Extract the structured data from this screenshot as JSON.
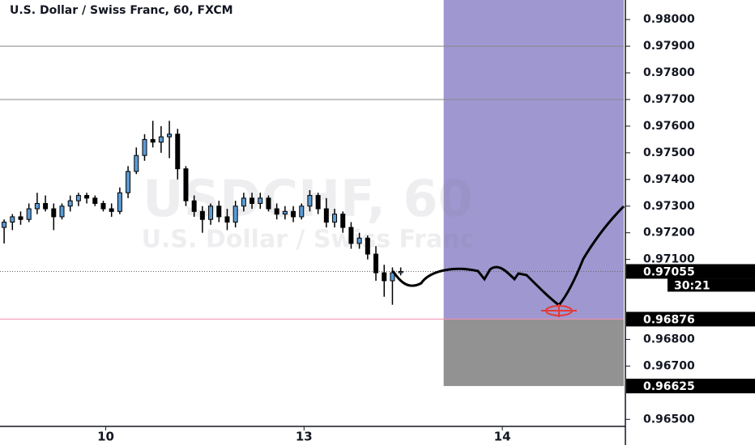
{
  "chart_data": {
    "type": "candlestick",
    "title": "U.S. Dollar / Swiss Franc, 60, FXCM",
    "watermark": [
      "USDCHF, 60",
      "U.S. Dollar / Swiss Franc"
    ],
    "open": [
      0.9722,
      0.9724,
      0.9726,
      0.9725,
      0.9729,
      0.9731,
      0.9729,
      0.9726,
      0.973,
      0.9732,
      0.9734,
      0.9733,
      0.9731,
      0.9729,
      0.9728,
      0.9735,
      0.9743,
      0.9749,
      0.9755,
      0.9754,
      0.9756,
      0.9757,
      0.9744,
      0.9732,
      0.9728,
      0.9725,
      0.973,
      0.9726,
      0.9724,
      0.973,
      0.9733,
      0.9731,
      0.9733,
      0.9729,
      0.9727,
      0.9728,
      0.9726,
      0.973,
      0.9734,
      0.9729,
      0.9724,
      0.9727,
      0.9722,
      0.9716,
      0.9718,
      0.9712,
      0.9705,
      0.9702,
      0.9705
    ],
    "high": [
      0.9725,
      0.9727,
      0.9728,
      0.9731,
      0.9735,
      0.9734,
      0.9731,
      0.9731,
      0.9734,
      0.9735,
      0.9735,
      0.9734,
      0.9732,
      0.9731,
      0.9737,
      0.9745,
      0.9752,
      0.9757,
      0.9762,
      0.976,
      0.9762,
      0.9759,
      0.9745,
      0.9734,
      0.973,
      0.9731,
      0.9732,
      0.9729,
      0.9732,
      0.9735,
      0.9735,
      0.9735,
      0.9734,
      0.9731,
      0.973,
      0.973,
      0.9731,
      0.9736,
      0.9735,
      0.9733,
      0.9729,
      0.9728,
      0.9724,
      0.972,
      0.9719,
      0.9715,
      0.9708,
      0.9707,
      0.9707
    ],
    "low": [
      0.9716,
      0.9721,
      0.9723,
      0.9724,
      0.9727,
      0.9728,
      0.9721,
      0.9725,
      0.9728,
      0.973,
      0.9731,
      0.973,
      0.9728,
      0.9726,
      0.9727,
      0.9733,
      0.9742,
      0.9747,
      0.9752,
      0.975,
      0.9748,
      0.974,
      0.973,
      0.9726,
      0.972,
      0.9723,
      0.9724,
      0.9721,
      0.9722,
      0.9728,
      0.9729,
      0.9729,
      0.9728,
      0.9725,
      0.9725,
      0.9724,
      0.9725,
      0.9728,
      0.9727,
      0.9722,
      0.9722,
      0.972,
      0.9714,
      0.9714,
      0.971,
      0.9702,
      0.9696,
      0.9693,
      0.9704
    ],
    "close": [
      0.9724,
      0.9726,
      0.9725,
      0.9729,
      0.9731,
      0.9729,
      0.9726,
      0.973,
      0.9732,
      0.9734,
      0.9733,
      0.9731,
      0.9729,
      0.9728,
      0.9735,
      0.9743,
      0.9749,
      0.9755,
      0.9754,
      0.9756,
      0.9757,
      0.9744,
      0.9732,
      0.9728,
      0.9725,
      0.973,
      0.9726,
      0.9724,
      0.973,
      0.9733,
      0.9731,
      0.9733,
      0.9729,
      0.9727,
      0.9728,
      0.9726,
      0.973,
      0.9734,
      0.9729,
      0.9724,
      0.9727,
      0.9722,
      0.9716,
      0.9718,
      0.9712,
      0.9705,
      0.9702,
      0.9705,
      0.97055
    ],
    "up_color": "#5b9bd5",
    "down_color": "#000000",
    "xlim": [
      -0.5,
      75
    ],
    "xticks": [
      {
        "value": 12.3,
        "label": "10"
      },
      {
        "value": 36.3,
        "label": "13"
      },
      {
        "value": 60.3,
        "label": "14"
      }
    ],
    "ylim": [
      0.980733,
      0.964736
    ],
    "yticks": [
      {
        "value": 0.98,
        "label": "0.98000"
      },
      {
        "value": 0.979,
        "label": "0.97900"
      },
      {
        "value": 0.978,
        "label": "0.97800"
      },
      {
        "value": 0.977,
        "label": "0.97700"
      },
      {
        "value": 0.976,
        "label": "0.97600"
      },
      {
        "value": 0.975,
        "label": "0.97500"
      },
      {
        "value": 0.974,
        "label": "0.97400"
      },
      {
        "value": 0.973,
        "label": "0.97300"
      },
      {
        "value": 0.972,
        "label": "0.97200"
      },
      {
        "value": 0.971,
        "label": "0.97100"
      },
      {
        "value": 0.968,
        "label": "0.96800"
      },
      {
        "value": 0.967,
        "label": "0.96700"
      },
      {
        "value": 0.965,
        "label": "0.96500"
      }
    ],
    "hlines": [
      0.979,
      0.977
    ],
    "last_price": {
      "value": 0.97055,
      "label": "0.97055",
      "countdown": "30:21"
    },
    "position": {
      "x_start": 53.2,
      "entry": 0.96876,
      "entry_label": "0.96876",
      "stop": 0.96625,
      "stop_label": "0.96625",
      "profit_color": "#9f97d0",
      "stop_color": "#929292"
    }
  }
}
